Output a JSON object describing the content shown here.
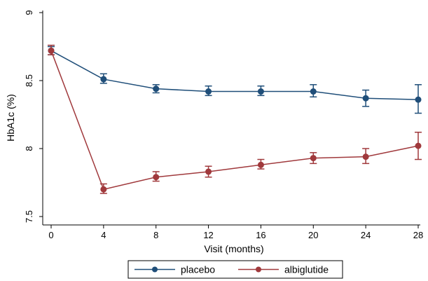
{
  "chart_data": {
    "type": "line",
    "xlabel": "Visit (months)",
    "ylabel": "HbA1c (%)",
    "x": [
      0,
      4,
      8,
      12,
      16,
      20,
      24,
      28
    ],
    "x_ticks": [
      "0",
      "4",
      "8",
      "12",
      "16",
      "20",
      "24",
      "28"
    ],
    "y_ticks": [
      "7.5",
      "8",
      "8.5",
      "9"
    ],
    "xlim": [
      0,
      28
    ],
    "ylim": [
      7.5,
      9
    ],
    "grid": false,
    "legend_placement": "bottom",
    "series": [
      {
        "name": "placebo",
        "color": "#1f4e79",
        "values": [
          8.72,
          8.51,
          8.44,
          8.42,
          8.42,
          8.42,
          8.37,
          8.36
        ],
        "err_low": [
          8.69,
          8.48,
          8.41,
          8.39,
          8.39,
          8.38,
          8.31,
          8.26
        ],
        "err_high": [
          8.75,
          8.55,
          8.47,
          8.46,
          8.46,
          8.47,
          8.43,
          8.47
        ]
      },
      {
        "name": "albiglutide",
        "color": "#a0393c",
        "values": [
          8.72,
          7.7,
          7.79,
          7.83,
          7.88,
          7.93,
          7.94,
          8.02
        ],
        "err_low": [
          8.69,
          7.67,
          7.76,
          7.79,
          7.85,
          7.89,
          7.89,
          7.92
        ],
        "err_high": [
          8.76,
          7.74,
          7.83,
          7.87,
          7.92,
          7.97,
          8.0,
          8.12
        ]
      }
    ]
  }
}
